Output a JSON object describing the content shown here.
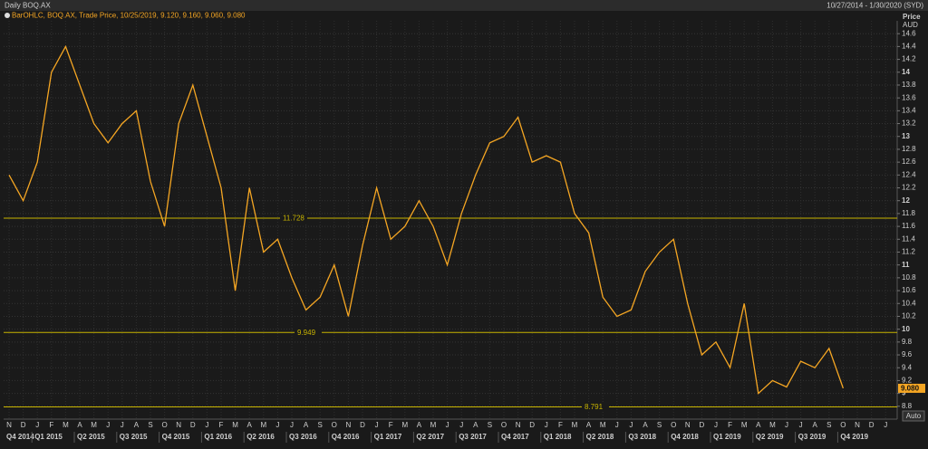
{
  "chart_data": {
    "type": "line",
    "title": "Daily BOQ.AX",
    "date_range": "10/27/2014 - 1/30/2020 (SYD)",
    "legend_text": "BarOHLC, BOQ.AX, Trade Price, 10/25/2019, 9.120, 9.160, 9.060, 9.080",
    "y_axis_label": "Price",
    "y_axis_unit": "AUD",
    "button_label": "Auto",
    "categories": [
      "N",
      "D",
      "J",
      "F",
      "M",
      "A",
      "M",
      "J",
      "J",
      "A",
      "S",
      "O",
      "N",
      "D",
      "J",
      "F",
      "M",
      "A",
      "M",
      "J",
      "J",
      "A",
      "S",
      "O",
      "N",
      "D",
      "J",
      "F",
      "M",
      "A",
      "M",
      "J",
      "J",
      "A",
      "S",
      "O",
      "N",
      "D",
      "J",
      "F",
      "M",
      "A",
      "M",
      "J",
      "J",
      "A",
      "S",
      "O",
      "N",
      "D",
      "J",
      "F",
      "M",
      "A",
      "M",
      "J",
      "J",
      "A",
      "S",
      "O",
      "N",
      "D",
      "J"
    ],
    "quarters": [
      "Q4 2014",
      "Q1 2015",
      "Q2 2015",
      "Q3 2015",
      "Q4 2015",
      "Q1 2016",
      "Q2 2016",
      "Q3 2016",
      "Q4 2016",
      "Q1 2017",
      "Q2 2017",
      "Q3 2017",
      "Q4 2017",
      "Q1 2018",
      "Q2 2018",
      "Q3 2018",
      "Q4 2018",
      "Q1 2019",
      "Q2 2019",
      "Q3 2019",
      "Q4 2019"
    ],
    "series": [
      {
        "name": "BOQ.AX",
        "color": "#f5a623",
        "values": [
          12.4,
          12.0,
          12.6,
          14.0,
          14.4,
          13.8,
          13.2,
          12.9,
          13.2,
          13.4,
          12.3,
          11.6,
          13.2,
          13.8,
          13.0,
          12.2,
          10.6,
          12.2,
          11.2,
          11.4,
          10.8,
          10.3,
          10.5,
          11.0,
          10.2,
          11.3,
          12.2,
          11.4,
          11.6,
          12.0,
          11.6,
          11.0,
          11.8,
          12.4,
          12.9,
          13.0,
          13.3,
          12.6,
          12.7,
          12.6,
          11.8,
          11.5,
          10.5,
          10.2,
          10.3,
          10.9,
          11.2,
          11.4,
          10.4,
          9.6,
          9.8,
          9.4,
          10.4,
          9.0,
          9.2,
          9.1,
          9.5,
          9.4,
          9.7,
          9.08,
          null,
          null,
          null
        ]
      }
    ],
    "reference_lines": [
      11.728,
      9.949,
      8.791
    ],
    "reference_color": "#c8b400",
    "last_price": {
      "value": 9.08,
      "label": "9.080"
    },
    "ylim": [
      8.6,
      14.8
    ],
    "yticks": [
      8.8,
      9,
      9.2,
      9.4,
      9.6,
      9.8,
      10,
      10.2,
      10.4,
      10.6,
      10.8,
      11,
      11.2,
      11.4,
      11.6,
      11.8,
      12,
      12.2,
      12.4,
      12.6,
      12.8,
      13,
      13.2,
      13.4,
      13.6,
      13.8,
      14,
      14.2,
      14.4,
      14.6
    ],
    "grid": true
  }
}
